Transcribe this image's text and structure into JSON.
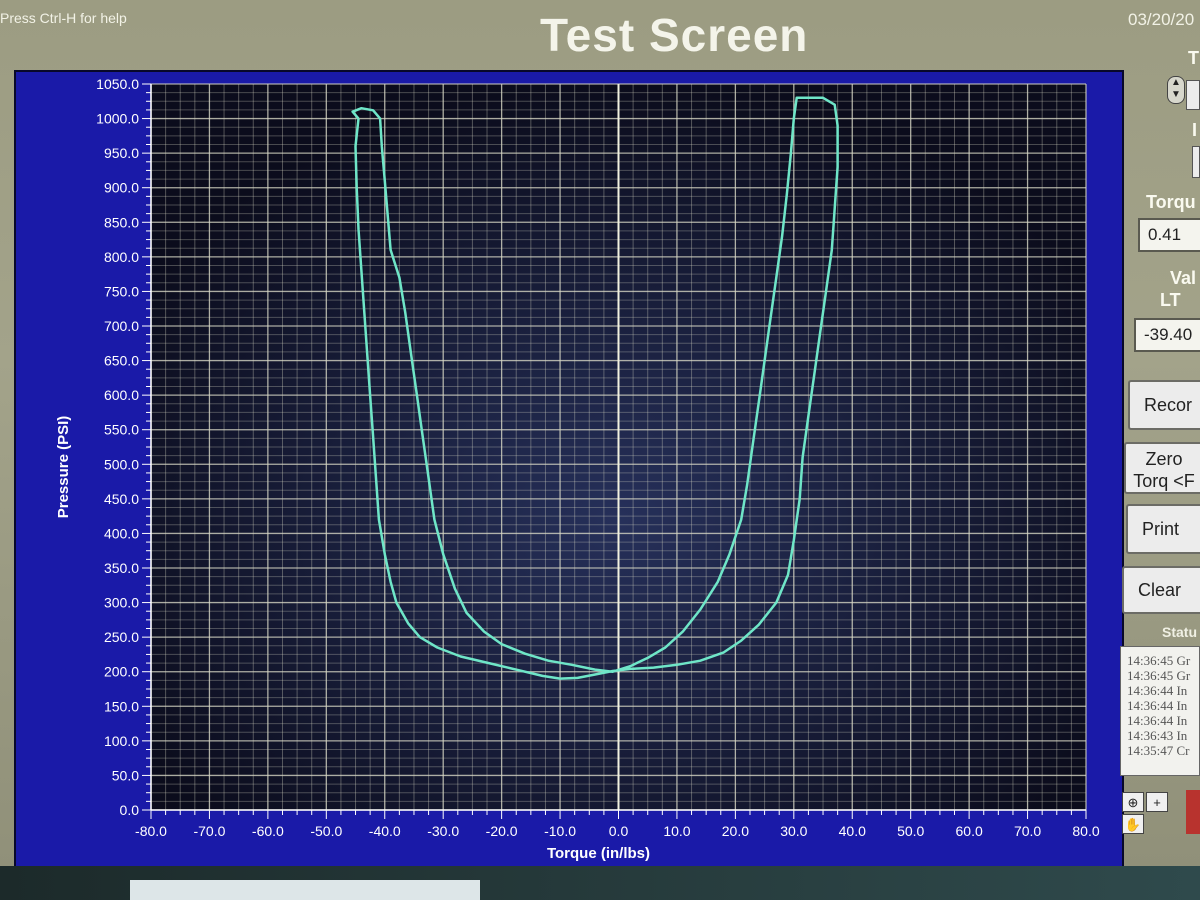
{
  "header": {
    "help_text": "Press Ctrl-H for help",
    "title": "Test Screen",
    "date": "03/20/20"
  },
  "side_panel": {
    "top_label": "T",
    "mid_label": "I",
    "torque_label": "Torqu",
    "torque_value": "0.41",
    "valve_label": "Val",
    "valve_sub_label": "LT",
    "valve_value": "-39.40",
    "buttons": {
      "record": "Recor",
      "zero_line1": "Zero",
      "zero_line2": "Torq <F",
      "print": "Print",
      "clear": "Clear"
    },
    "status_label": "Statu",
    "status_lines": [
      "14:36:45 Gr",
      "14:36:45 Gr",
      "14:36:44 In",
      "14:36:44 In",
      "14:36:44 In",
      "14:36:43 In",
      "14:35:47 Cr"
    ],
    "tools": {
      "zoom": "⊕",
      "plus": "+",
      "pan": "✋"
    }
  },
  "colors": {
    "plot_bg": "#12128c",
    "plot_area": "#0e1020",
    "grid": "#d9d9c6",
    "trace": "#6fe6c8",
    "frame": "#1a1aa8"
  },
  "chart_data": {
    "type": "line",
    "xlabel": "Torque (in/lbs)",
    "ylabel": "Pressure (PSI)",
    "xlim": [
      -80,
      80
    ],
    "ylim": [
      0,
      1050
    ],
    "x_ticks": [
      "-80.0",
      "-70.0",
      "-60.0",
      "-50.0",
      "-40.0",
      "-30.0",
      "-20.0",
      "-10.0",
      "0.0",
      "10.0",
      "20.0",
      "30.0",
      "40.0",
      "50.0",
      "60.0",
      "70.0",
      "80.0"
    ],
    "y_ticks": [
      "0.0",
      "50.0",
      "100.0",
      "150.0",
      "200.0",
      "250.0",
      "300.0",
      "350.0",
      "400.0",
      "450.0",
      "500.0",
      "550.0",
      "600.0",
      "650.0",
      "700.0",
      "750.0",
      "800.0",
      "850.0",
      "900.0",
      "950.0",
      "1000.0",
      "1050.0"
    ],
    "grid": true,
    "series": [
      {
        "points": [
          [
            -44.5,
            1000
          ],
          [
            -45,
            960
          ],
          [
            -44.8,
            900
          ],
          [
            -44.5,
            840
          ],
          [
            -44,
            780
          ],
          [
            -43.5,
            720
          ],
          [
            -43,
            660
          ],
          [
            -42.5,
            600
          ],
          [
            -42,
            540
          ],
          [
            -41.5,
            480
          ],
          [
            -41,
            420
          ],
          [
            -40,
            370
          ],
          [
            -39,
            330
          ],
          [
            -38,
            300
          ],
          [
            -36,
            270
          ],
          [
            -34,
            250
          ],
          [
            -31,
            235
          ],
          [
            -27,
            222
          ],
          [
            -22,
            212
          ],
          [
            -17,
            202
          ],
          [
            -13,
            194
          ],
          [
            -10,
            190
          ],
          [
            -7,
            191
          ],
          [
            -4,
            196
          ],
          [
            -1,
            201
          ],
          [
            2,
            204
          ],
          [
            6,
            206
          ],
          [
            10,
            210
          ],
          [
            14,
            216
          ],
          [
            18,
            228
          ],
          [
            21,
            245
          ],
          [
            24,
            268
          ],
          [
            27,
            300
          ],
          [
            29,
            340
          ],
          [
            30,
            390
          ],
          [
            31,
            450
          ],
          [
            31.5,
            510
          ],
          [
            32.5,
            570
          ],
          [
            33.5,
            630
          ],
          [
            34.5,
            690
          ],
          [
            35.5,
            750
          ],
          [
            36.5,
            810
          ],
          [
            37,
            870
          ],
          [
            37.5,
            930
          ],
          [
            37.5,
            990
          ],
          [
            37,
            1020
          ],
          [
            35,
            1030
          ],
          [
            32.5,
            1030
          ],
          [
            30.5,
            1030
          ],
          [
            30,
            1000
          ],
          [
            29.5,
            950
          ],
          [
            28.8,
            890
          ],
          [
            28,
            830
          ],
          [
            27,
            770
          ],
          [
            26,
            710
          ],
          [
            25,
            650
          ],
          [
            24,
            590
          ],
          [
            23,
            530
          ],
          [
            22,
            470
          ],
          [
            21,
            420
          ],
          [
            19,
            370
          ],
          [
            17,
            330
          ],
          [
            14,
            290
          ],
          [
            11,
            258
          ],
          [
            8,
            235
          ],
          [
            5,
            220
          ],
          [
            2,
            208
          ],
          [
            -1,
            200
          ],
          [
            -4,
            203
          ],
          [
            -8,
            210
          ],
          [
            -12,
            216
          ],
          [
            -16,
            226
          ],
          [
            -20,
            240
          ],
          [
            -23,
            258
          ],
          [
            -26,
            285
          ],
          [
            -28,
            320
          ],
          [
            -30,
            370
          ],
          [
            -31.5,
            420
          ],
          [
            -32.5,
            480
          ],
          [
            -33.5,
            540
          ],
          [
            -34.5,
            600
          ],
          [
            -35.5,
            660
          ],
          [
            -36.5,
            720
          ],
          [
            -37.5,
            770
          ],
          [
            -39,
            810
          ],
          [
            -39.5,
            860
          ],
          [
            -40,
            910
          ],
          [
            -40.5,
            960
          ],
          [
            -40.8,
            1000
          ],
          [
            -42,
            1012
          ],
          [
            -44,
            1015
          ],
          [
            -45.5,
            1010
          ],
          [
            -44.5,
            1000
          ]
        ]
      }
    ]
  }
}
